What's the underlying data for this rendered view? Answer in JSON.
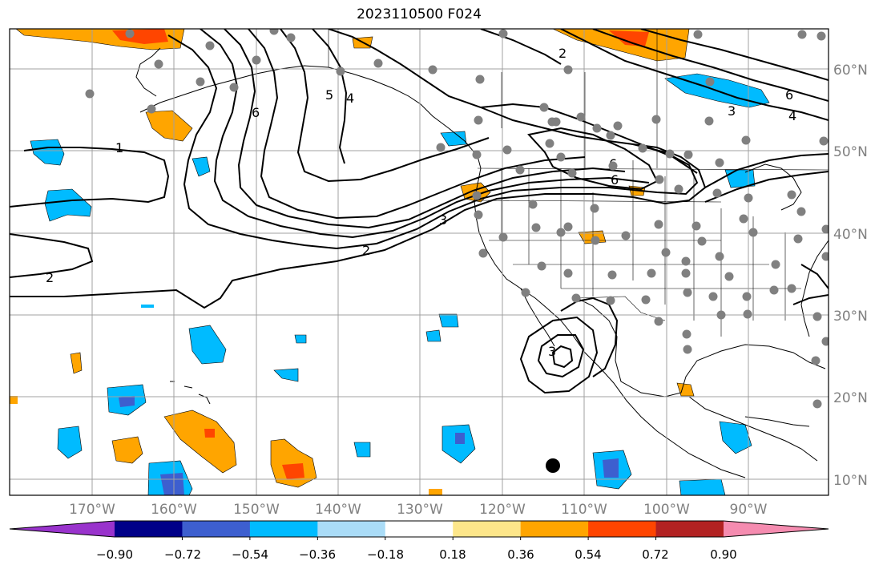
{
  "title": "2023110500 F024",
  "lat_labels": [
    "60°N",
    "50°N",
    "40°N",
    "30°N",
    "20°N",
    "10°N"
  ],
  "lon_labels": [
    "170°W",
    "160°W",
    "150°W",
    "140°W",
    "130°W",
    "120°W",
    "110°W",
    "100°W",
    "90°W"
  ],
  "colorbar": {
    "colors": [
      "#9933cc",
      "#000088",
      "#3d5fcf",
      "#00bbff",
      "#aadcf7",
      "#ffffff",
      "#fde68a",
      "#ffa500",
      "#ff4500",
      "#b22222",
      "#f58cb0"
    ],
    "tick_labels": [
      "−0.90",
      "−0.72",
      "−0.54",
      "−0.36",
      "−0.18",
      "0.18",
      "0.36",
      "0.54",
      "0.72",
      "0.90"
    ]
  },
  "contour_labels": [
    "1",
    "2",
    "2",
    "2",
    "3",
    "3",
    "4",
    "4",
    "5",
    "6",
    "6",
    "6",
    "6",
    "3"
  ],
  "colors": {
    "grid": "#a0a0a0",
    "coast": "#000000",
    "station": "#808080",
    "contour": "#000000"
  }
}
